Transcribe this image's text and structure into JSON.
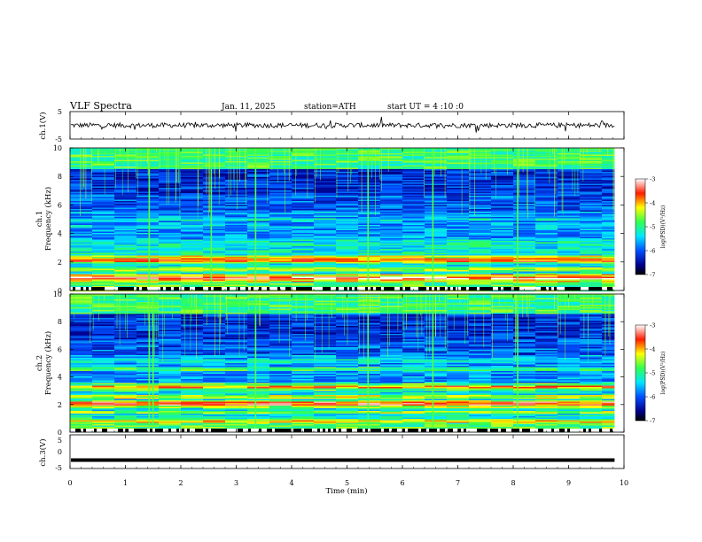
{
  "header": {
    "title": "VLF  Spectra",
    "date": "Jan. 11, 2025",
    "station": "station=ATH",
    "start": "start  UT  =   4  :10 :0"
  },
  "chart_data": [
    {
      "type": "line",
      "panel": "ch1-waveform",
      "ylabel": "ch.1(V)",
      "ylim": [
        -5,
        5
      ],
      "yticks": [
        "5",
        "-5"
      ],
      "xlim": [
        0,
        10
      ],
      "x_extent_min": 9.83,
      "baseline": 0
    },
    {
      "type": "heatmap",
      "panel": "ch1-spectrogram",
      "ylabel": "ch.1\nFrequency  (kHz)",
      "ylim": [
        0,
        10
      ],
      "yticks": [
        "0",
        "2",
        "4",
        "6",
        "8",
        "10"
      ],
      "xlim": [
        0,
        10
      ],
      "x_extent_min": 9.83,
      "bands_khz": [
        {
          "f": 0.9,
          "level": -3.3,
          "note": "red line"
        },
        {
          "f": 1.5,
          "level": -4.6
        },
        {
          "f": 2.2,
          "level": -3.8,
          "note": "red/yellow line"
        },
        {
          "f": 2.4,
          "level": -4.3
        },
        {
          "f": 3.3,
          "level": -5.2
        },
        {
          "f": 4.5,
          "level": -5.6
        },
        {
          "f": 5.0,
          "level": -5.3
        }
      ],
      "sferic_times_min": [
        1.43,
        2.55,
        3.35,
        5.38,
        6.55,
        8.08
      ],
      "colorbar": {
        "label": "log(PSD)(V²/Hz)",
        "range": [
          -7,
          -3
        ],
        "ticks": [
          "-3",
          "-4",
          "-5",
          "-6",
          "-7"
        ]
      }
    },
    {
      "type": "heatmap",
      "panel": "ch2-spectrogram",
      "ylabel": "ch.2\nFrequency  (kHz)",
      "ylim": [
        0,
        10
      ],
      "yticks": [
        "0",
        "2",
        "4",
        "6",
        "8",
        "10"
      ],
      "xlim": [
        0,
        10
      ],
      "x_extent_min": 9.83,
      "bands_khz": [
        {
          "f": 0.8,
          "level": -4.2
        },
        {
          "f": 1.5,
          "level": -4.5
        },
        {
          "f": 2.1,
          "level": -3.6,
          "note": "red line"
        },
        {
          "f": 2.6,
          "level": -4.4
        },
        {
          "f": 3.3,
          "level": -3.9,
          "note": "red/yellow line"
        },
        {
          "f": 4.6,
          "level": -4.9
        },
        {
          "f": 5.2,
          "level": -5.3
        }
      ],
      "sferic_times_min": [
        1.43,
        1.5,
        3.35,
        5.38,
        6.55,
        8.08
      ],
      "colorbar": {
        "label": "log(PSD)(V²/Hz)",
        "range": [
          -7,
          -3
        ],
        "ticks": [
          "-3",
          "-4",
          "-5",
          "-6",
          "-7"
        ]
      }
    },
    {
      "type": "line",
      "panel": "ch3-waveform",
      "ylabel": "ch.3(V)",
      "ylim": [
        -5,
        5
      ],
      "yticks": [
        "5",
        "0",
        "-5"
      ],
      "xlim": [
        0,
        10
      ],
      "x_extent_min": 9.83,
      "baseline": -2.5
    }
  ],
  "xaxis": {
    "label": "Time  (min)",
    "ticks": [
      "0",
      "1",
      "2",
      "3",
      "4",
      "5",
      "6",
      "7",
      "8",
      "9",
      "10"
    ]
  }
}
